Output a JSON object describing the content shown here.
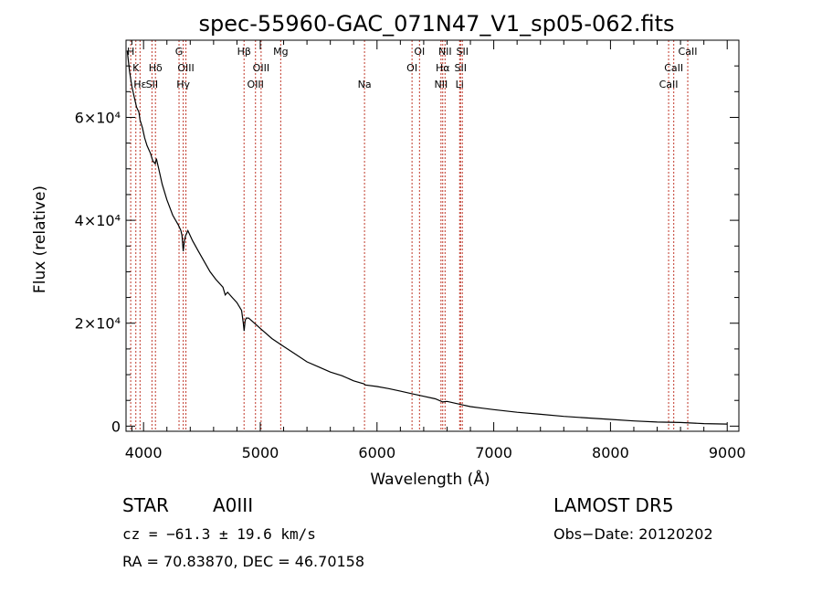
{
  "chart_data": {
    "type": "line",
    "title": "spec-55960-GAC_071N47_V1_sp05-062.fits",
    "xlabel": "Wavelength (Å)",
    "ylabel": "Flux (relative)",
    "xlim": [
      3850,
      9100
    ],
    "ylim": [
      -1000,
      75000
    ],
    "x_ticks": [
      {
        "value": 4000,
        "label": "4000"
      },
      {
        "value": 5000,
        "label": "5000"
      },
      {
        "value": 6000,
        "label": "6000"
      },
      {
        "value": 7000,
        "label": "7000"
      },
      {
        "value": 8000,
        "label": "8000"
      },
      {
        "value": 9000,
        "label": "9000"
      }
    ],
    "y_ticks": [
      {
        "value": 0,
        "label": "0"
      },
      {
        "value": 20000,
        "label": "2×10⁴"
      },
      {
        "value": 40000,
        "label": "4×10⁴"
      },
      {
        "value": 60000,
        "label": "6×10⁴"
      }
    ],
    "line_color": "#000000",
    "marker_color": "#c0392b",
    "spectrum": {
      "x": [
        3860,
        3880,
        3900,
        3920,
        3940,
        3960,
        3970,
        3990,
        4010,
        4030,
        4060,
        4080,
        4100,
        4110,
        4130,
        4160,
        4200,
        4250,
        4300,
        4320,
        4330,
        4340,
        4350,
        4360,
        4380,
        4420,
        4470,
        4520,
        4570,
        4620,
        4680,
        4700,
        4720,
        4760,
        4800,
        4840,
        4855,
        4862,
        4870,
        4880,
        4900,
        4950,
        5000,
        5100,
        5200,
        5300,
        5400,
        5500,
        5600,
        5700,
        5800,
        5890,
        5900,
        6000,
        6100,
        6200,
        6300,
        6400,
        6500,
        6563,
        6600,
        6700,
        6800,
        6900,
        7000,
        7200,
        7400,
        7600,
        7800,
        8000,
        8200,
        8400,
        8600,
        8800,
        9000
      ],
      "y": [
        73000,
        69000,
        66000,
        64000,
        62000,
        61000,
        59500,
        58000,
        56000,
        54500,
        53000,
        51500,
        51000,
        52000,
        50000,
        47000,
        44000,
        41000,
        39000,
        38000,
        37000,
        34000,
        36000,
        37000,
        38000,
        36000,
        34000,
        32000,
        30000,
        28500,
        27000,
        25500,
        26000,
        25000,
        24000,
        22500,
        20000,
        18500,
        20500,
        21000,
        21000,
        20000,
        19000,
        17000,
        15500,
        14000,
        12500,
        11500,
        10500,
        9800,
        8800,
        8200,
        8000,
        7700,
        7300,
        6800,
        6300,
        5800,
        5300,
        4700,
        4800,
        4300,
        3800,
        3500,
        3200,
        2700,
        2300,
        1900,
        1600,
        1300,
        1000,
        800,
        700,
        500,
        400
      ]
    },
    "line_markers": [
      {
        "wavelength": 3890,
        "label": "H",
        "row": 0
      },
      {
        "wavelength": 3934,
        "label": "K",
        "row": 1
      },
      {
        "wavelength": 3970,
        "label": "Hε",
        "row": 2
      },
      {
        "wavelength": 4072,
        "label": "SII",
        "row": 2
      },
      {
        "wavelength": 4102,
        "label": "Hδ",
        "row": 1
      },
      {
        "wavelength": 4304,
        "label": "G",
        "row": 0
      },
      {
        "wavelength": 4340,
        "label": "Hγ",
        "row": 2
      },
      {
        "wavelength": 4363,
        "label": "OIII",
        "row": 1
      },
      {
        "wavelength": 4861,
        "label": "Hβ",
        "row": 0
      },
      {
        "wavelength": 4959,
        "label": "OIII",
        "row": 2
      },
      {
        "wavelength": 5007,
        "label": "OIII",
        "row": 1
      },
      {
        "wavelength": 5175,
        "label": "Mg",
        "row": 0
      },
      {
        "wavelength": 5893,
        "label": "Na",
        "row": 2
      },
      {
        "wavelength": 6300,
        "label": "OI",
        "row": 1
      },
      {
        "wavelength": 6364,
        "label": "OI",
        "row": 0
      },
      {
        "wavelength": 6548,
        "label": "NII",
        "row": 2
      },
      {
        "wavelength": 6563,
        "label": "Hα",
        "row": 1
      },
      {
        "wavelength": 6583,
        "label": "NII",
        "row": 0
      },
      {
        "wavelength": 6708,
        "label": "Li",
        "row": 2
      },
      {
        "wavelength": 6716,
        "label": "SII",
        "row": 1
      },
      {
        "wavelength": 6731,
        "label": "SII",
        "row": 0
      },
      {
        "wavelength": 8498,
        "label": "CaII",
        "row": 2
      },
      {
        "wavelength": 8542,
        "label": "CaII",
        "row": 1
      },
      {
        "wavelength": 8662,
        "label": "CaII",
        "row": 0
      }
    ]
  },
  "info": {
    "object_class": "STAR",
    "subclass": "A0III",
    "survey": "LAMOST DR5",
    "cz": "cz = −61.3 ± 19.6 km/s",
    "obs_date": "Obs−Date: 20120202",
    "coords": "RA =  70.83870, DEC =  46.70158"
  }
}
